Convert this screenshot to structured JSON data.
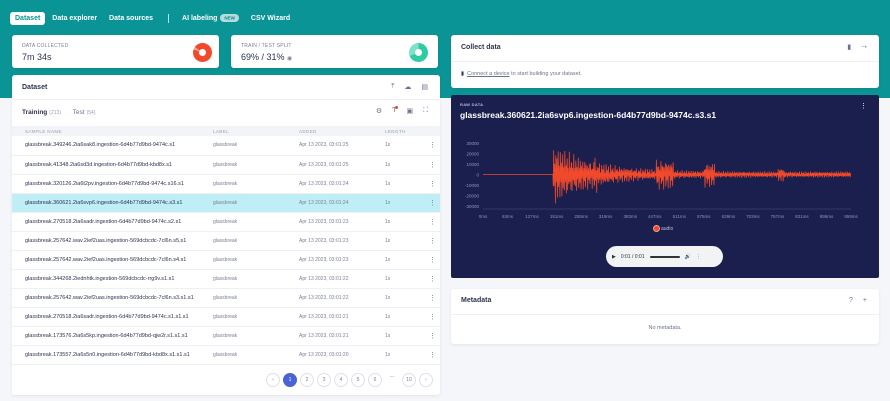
{
  "nav": {
    "tabs": [
      {
        "label": "Dataset",
        "active": true
      },
      {
        "label": "Data explorer"
      },
      {
        "label": "Data sources"
      }
    ],
    "ai_labeling": "AI labeling",
    "ai_badge": "NEW",
    "csv": "CSV Wizard"
  },
  "stats": {
    "collected": {
      "label": "DATA COLLECTED",
      "value": "7m 34s",
      "color": "#f0492b"
    },
    "split": {
      "label": "TRAIN / TEST SPLIT",
      "value": "69% / 31%",
      "color": "#2fcca4"
    }
  },
  "dataset": {
    "title": "Dataset",
    "tabs": {
      "training": "Training",
      "training_count": "(213)",
      "test": "Test",
      "test_count": "(54)"
    },
    "columns": [
      "SAMPLE NAME",
      "LABEL",
      "ADDED",
      "LENGTH"
    ],
    "rows": [
      {
        "name": "glassbreak.349246.2ia6sak8.ingestion-6d4b77d9bd-9474c.s1",
        "label": "glassbreak",
        "added": "Apr 13 2023, 03:01:25",
        "length": "1s"
      },
      {
        "name": "glassbreak.41348.2ia6sd3d.ingestion-6d4b77d9bd-kbd8x.s1",
        "label": "glassbreak",
        "added": "Apr 13 2023, 03:01:25",
        "length": "1s"
      },
      {
        "name": "glassbreak.320126.2ia6t2pv.ingestion-6d4b77d9bd-9474c.s16.s1",
        "label": "glassbreak",
        "added": "Apr 13 2023, 03:01:24",
        "length": "1s"
      },
      {
        "name": "glassbreak.360621.2ia6svp6.ingestion-6d4b77d9bd-9474c.s3.s1",
        "label": "glassbreak",
        "added": "Apr 13 2023, 03:01:24",
        "length": "1s",
        "selected": true
      },
      {
        "name": "glassbreak.270518.2ia6sadr.ingestion-6d4b77d9bd-9474c.s2.s1",
        "label": "glassbreak",
        "added": "Apr 13 2023, 03:01:23",
        "length": "1s"
      },
      {
        "name": "glassbreak.257642.wav.2ief2uas.ingestion-569dcbcdc-7cl6n.s5.s1",
        "label": "glassbreak",
        "added": "Apr 13 2023, 03:01:23",
        "length": "1s"
      },
      {
        "name": "glassbreak.257642.wav.2ief2uas.ingestion-569dcbcdc-7cl6n.s4.s1",
        "label": "glassbreak",
        "added": "Apr 13 2023, 03:01:23",
        "length": "1s"
      },
      {
        "name": "glassbreak.344268.2iednhtk.ingestion-569dcbcdc-rrg9v.s1.s1",
        "label": "glassbreak",
        "added": "Apr 13 2023, 03:01:22",
        "length": "1s"
      },
      {
        "name": "glassbreak.257642.wav.2ief2uas.ingestion-569dcbcdc-7cl6n.s3.s1.s1",
        "label": "glassbreak",
        "added": "Apr 13 2023, 03:01:22",
        "length": "1s"
      },
      {
        "name": "glassbreak.270518.2ia6sadr.ingestion-6d4b77d9bd-9474c.s1.s1.s1",
        "label": "glassbreak",
        "added": "Apr 13 2023, 03:01:21",
        "length": "1s"
      },
      {
        "name": "glassbreak.173576.2ia6s5kp.ingestion-6d4b77d9bd-qjw2r.s1.s1.s1",
        "label": "glassbreak",
        "added": "Apr 13 2023, 03:01:21",
        "length": "1s"
      },
      {
        "name": "glassbreak.173557.2ia6s5n0.ingestion-6d4b77d9bd-kbd8x.s1.s1.s1",
        "label": "glassbreak",
        "added": "Apr 13 2023, 03:01:20",
        "length": "1s"
      }
    ],
    "pages": [
      "1",
      "2",
      "3",
      "4",
      "5",
      "6",
      "...",
      "10"
    ]
  },
  "collect": {
    "title": "Collect data",
    "link": "Connect a device",
    "rest": " to start building your dataset."
  },
  "raw": {
    "label": "RAW DATA",
    "title": "glassbreak.360621.2ia6svp6.ingestion-6d4b77d9bd-9474c.s3.s1",
    "yticks": [
      "30000",
      "20000",
      "10000",
      "0",
      "-10000",
      "-20000",
      "-30000"
    ],
    "xticks": [
      "0ms",
      "63ms",
      "127ms",
      "191ms",
      "255ms",
      "319ms",
      "383ms",
      "447ms",
      "511ms",
      "575ms",
      "639ms",
      "703ms",
      "767ms",
      "831ms",
      "895ms",
      "959ms"
    ],
    "legend": "audio",
    "time": "0:01 / 0:01"
  },
  "metadata": {
    "title": "Metadata",
    "empty": "No metadata."
  }
}
